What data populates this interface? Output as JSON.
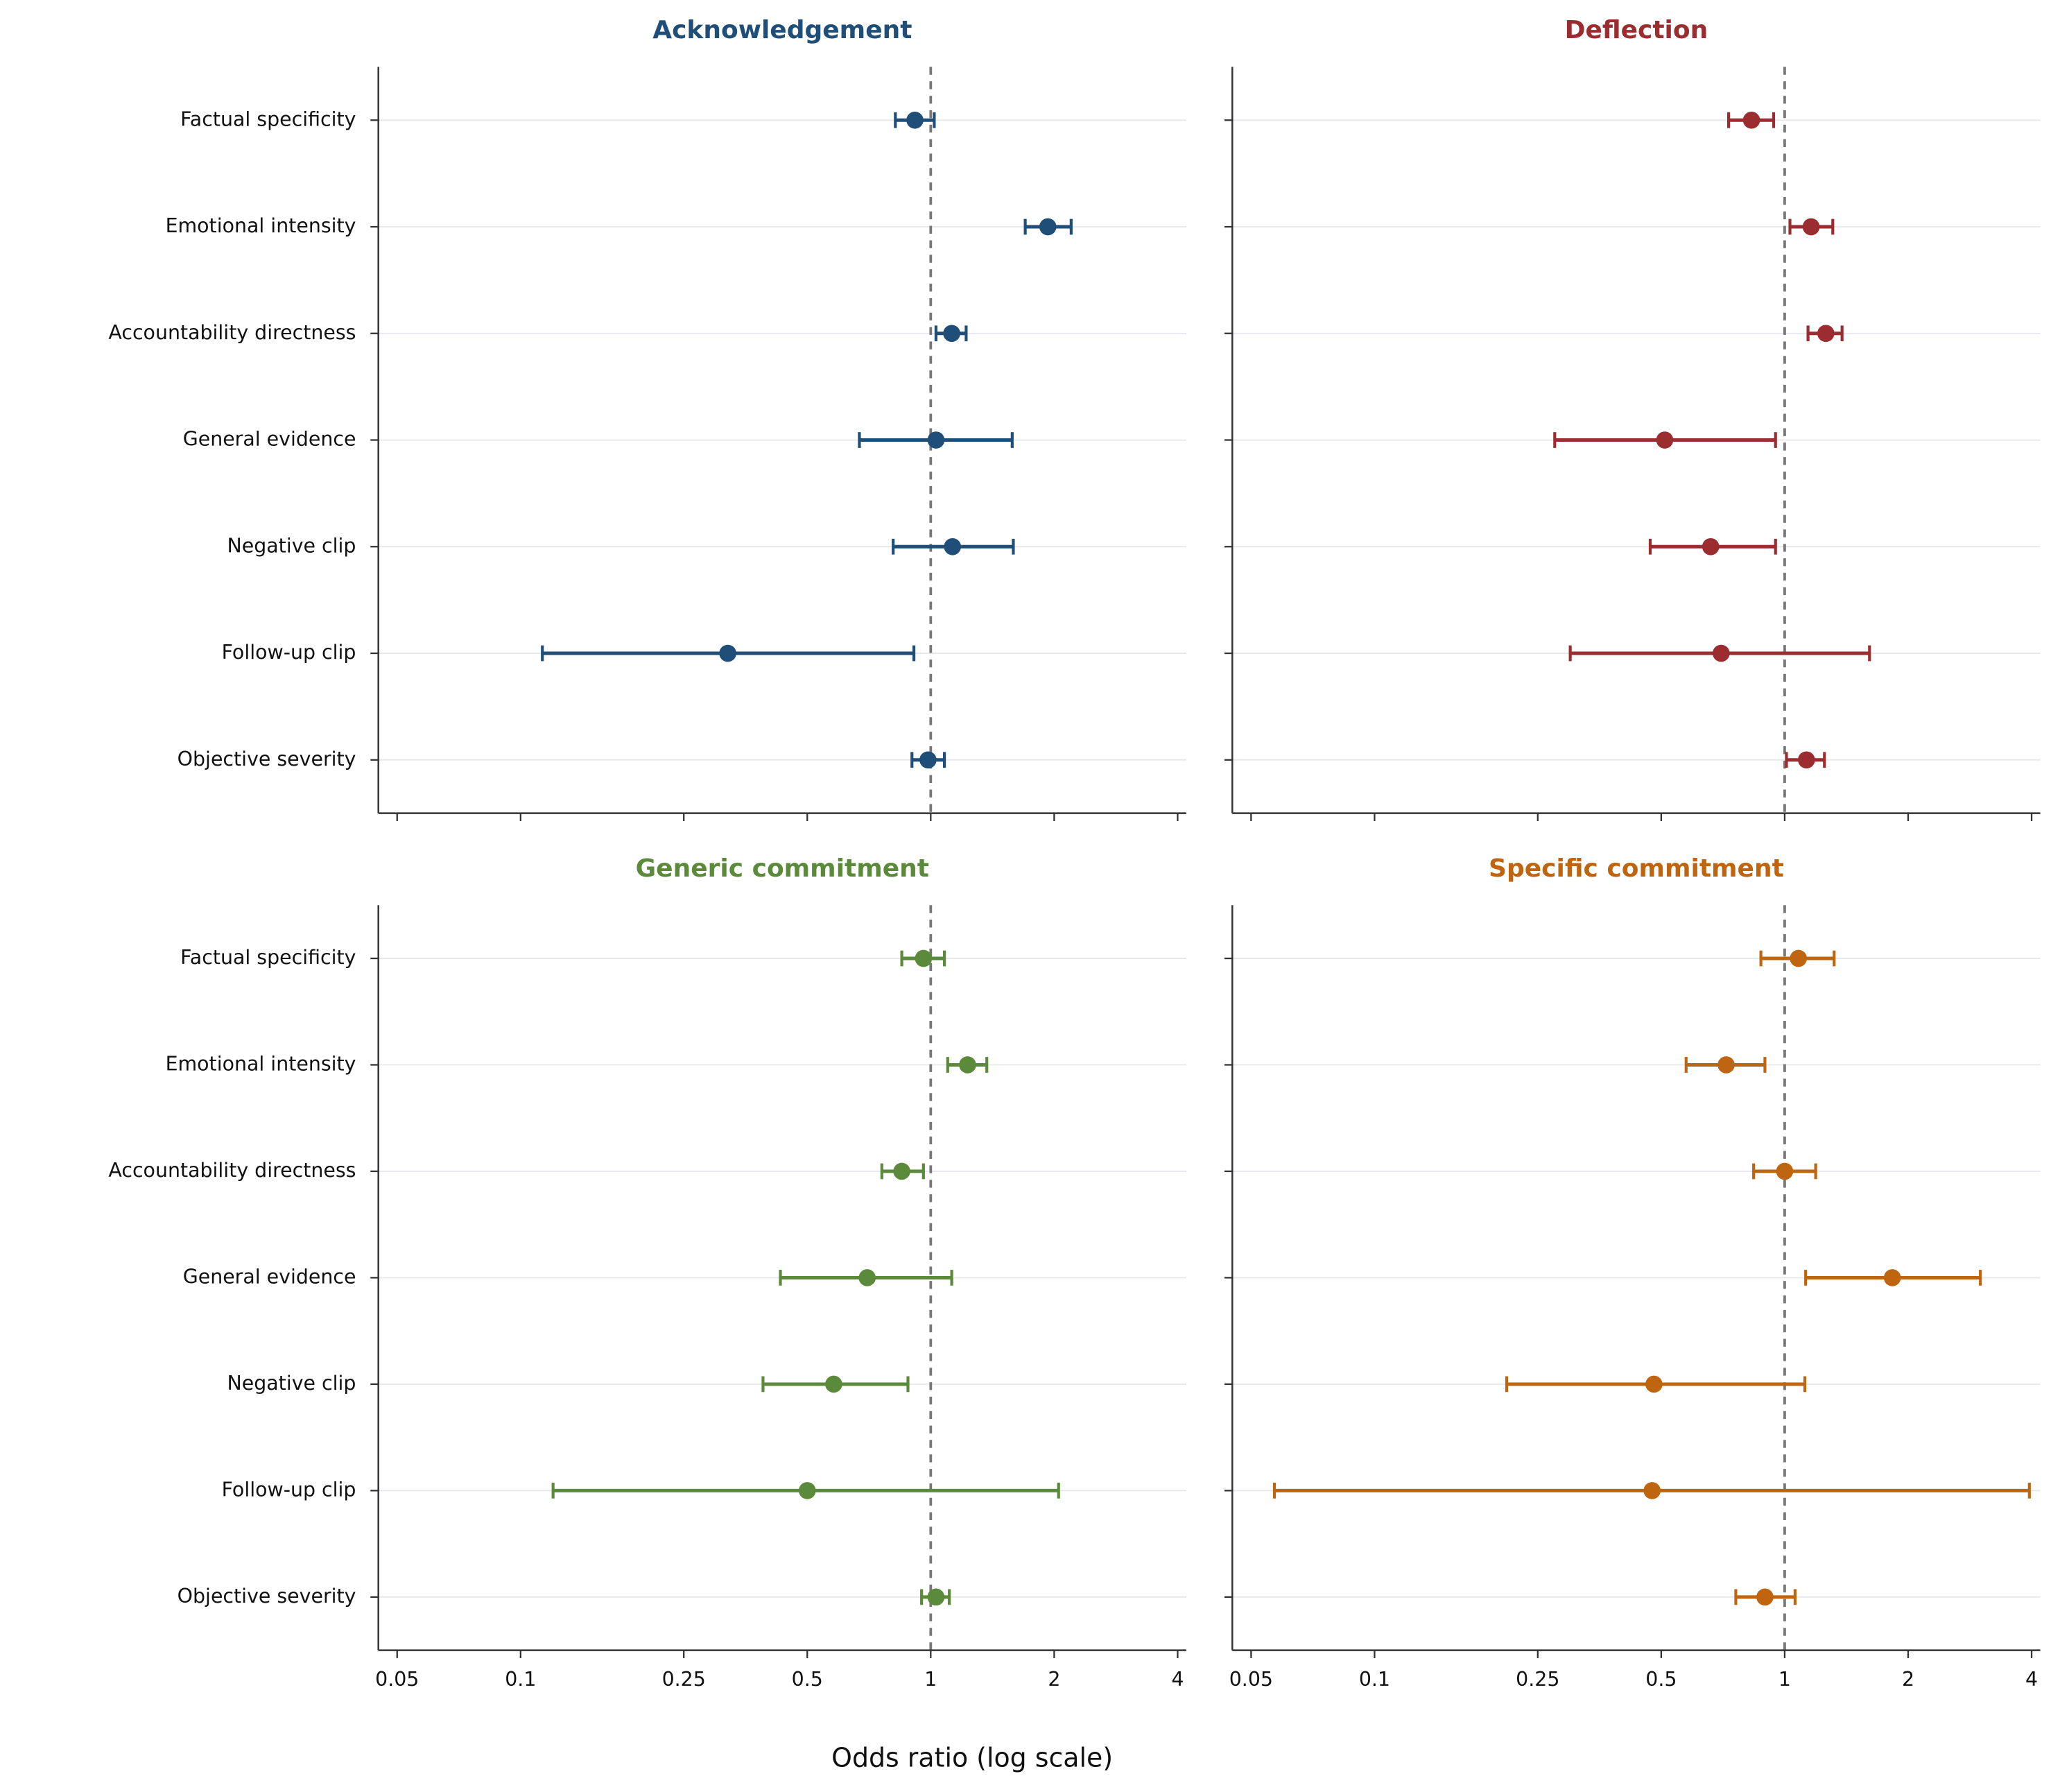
{
  "xlabel": "Odds ratio (log scale)",
  "chart_data": [
    {
      "type": "errorbar",
      "title": "Acknowledgement",
      "color": "#1f4e79",
      "categories": [
        "Factual specificity",
        "Emotional intensity",
        "Accountability directness",
        "General evidence",
        "Negative clip",
        "Follow-up clip",
        "Objective severity"
      ],
      "values": [
        0.915,
        1.93,
        1.125,
        1.03,
        1.13,
        0.32,
        0.985
      ],
      "lower": [
        0.82,
        1.7,
        1.03,
        0.67,
        0.81,
        0.113,
        0.9
      ],
      "upper": [
        1.02,
        2.2,
        1.22,
        1.58,
        1.59,
        0.91,
        1.08
      ],
      "xlim": [
        0.045,
        4.2
      ],
      "xticks": [
        0.05,
        0.1,
        0.25,
        0.5,
        1,
        2,
        4
      ],
      "log_x": true,
      "reference_line": 1,
      "grid": "y"
    },
    {
      "type": "errorbar",
      "title": "Deflection",
      "color": "#9b2d30",
      "categories": [
        "Factual specificity",
        "Emotional intensity",
        "Accountability directness",
        "General evidence",
        "Negative clip",
        "Follow-up clip",
        "Objective severity"
      ],
      "values": [
        0.83,
        1.16,
        1.26,
        0.51,
        0.66,
        0.7,
        1.13
      ],
      "lower": [
        0.73,
        1.03,
        1.14,
        0.275,
        0.47,
        0.3,
        1.01
      ],
      "upper": [
        0.94,
        1.31,
        1.38,
        0.95,
        0.95,
        1.61,
        1.25
      ],
      "xlim": [
        0.045,
        4.2
      ],
      "xticks": [
        0.05,
        0.1,
        0.25,
        0.5,
        1,
        2,
        4
      ],
      "log_x": true,
      "reference_line": 1,
      "grid": "y"
    },
    {
      "type": "errorbar",
      "title": "Generic commitment",
      "color": "#5a8a3a",
      "categories": [
        "Factual specificity",
        "Emotional intensity",
        "Accountability directness",
        "General evidence",
        "Negative clip",
        "Follow-up clip",
        "Objective severity"
      ],
      "values": [
        0.96,
        1.23,
        0.85,
        0.7,
        0.58,
        0.5,
        1.03
      ],
      "lower": [
        0.85,
        1.1,
        0.76,
        0.43,
        0.39,
        0.12,
        0.95
      ],
      "upper": [
        1.08,
        1.37,
        0.96,
        1.125,
        0.88,
        2.05,
        1.11
      ],
      "xlim": [
        0.045,
        4.2
      ],
      "xticks": [
        0.05,
        0.1,
        0.25,
        0.5,
        1,
        2,
        4
      ],
      "log_x": true,
      "reference_line": 1,
      "grid": "y"
    },
    {
      "type": "errorbar",
      "title": "Specific commitment",
      "color": "#c0650f",
      "categories": [
        "Factual specificity",
        "Emotional intensity",
        "Accountability directness",
        "General evidence",
        "Negative clip",
        "Follow-up clip",
        "Objective severity"
      ],
      "values": [
        1.08,
        0.72,
        1.0,
        1.83,
        0.48,
        0.475,
        0.895
      ],
      "lower": [
        0.875,
        0.575,
        0.84,
        1.125,
        0.21,
        0.057,
        0.76
      ],
      "upper": [
        1.32,
        0.895,
        1.19,
        3.0,
        1.12,
        3.95,
        1.06
      ],
      "xlim": [
        0.045,
        4.2
      ],
      "xticks": [
        0.05,
        0.1,
        0.25,
        0.5,
        1,
        2,
        4
      ],
      "log_x": true,
      "reference_line": 1,
      "grid": "y"
    }
  ]
}
